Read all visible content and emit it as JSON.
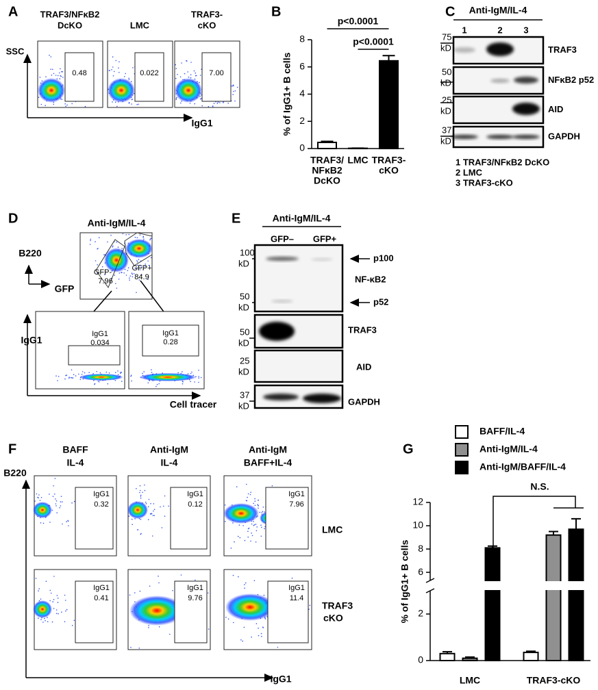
{
  "panel_labels": [
    "A",
    "B",
    "C",
    "D",
    "E",
    "F",
    "G"
  ],
  "flow_a": {
    "columns": [
      [
        "TRAF3/NFκB2",
        "DcKO"
      ],
      [
        "LMC"
      ],
      [
        "TRAF3-",
        "cKO"
      ]
    ],
    "y_axis": "SSC",
    "x_axis": "IgG1",
    "gates": [
      "0.48",
      "0.022",
      "7.00"
    ]
  },
  "chart_data": [
    {
      "type": "bar",
      "y_label": "% of IgG1+ B cells",
      "categories": [
        [
          "TRAF3/",
          "NFκB2",
          "DcKO"
        ],
        [
          "LMC"
        ],
        [
          "TRAF3-",
          "cKO"
        ]
      ],
      "values": [
        0.45,
        0.02,
        6.45
      ],
      "errors": [
        0.08,
        0.01,
        0.38
      ],
      "colors": [
        "#ffffff",
        "#ffffff",
        "#000000"
      ],
      "ylim": [
        0,
        8
      ],
      "yticks": [
        0,
        2,
        4,
        6,
        8
      ],
      "annotations": [
        "p<0.0001",
        "p<0.0001"
      ]
    },
    {
      "type": "bar",
      "y_label": "% of IgG1+ B cells",
      "categories": [
        "LMC",
        "TRAF3-cKO"
      ],
      "series": [
        {
          "name": "BAFF/IL-4",
          "color": "#ffffff",
          "values": [
            0.3,
            0.35
          ],
          "errors": [
            0.08,
            0.05
          ]
        },
        {
          "name": "Anti-IgM/IL-4",
          "color": "#909090",
          "values": [
            0.1,
            9.2
          ],
          "errors": [
            0.05,
            0.3
          ]
        },
        {
          "name": "Anti-IgM/BAFF/IL-4",
          "color": "#000000",
          "values": [
            8.1,
            9.7
          ],
          "errors": [
            0.15,
            0.9
          ]
        }
      ],
      "ylim": [
        0,
        12
      ],
      "axis_break": [
        3,
        5.3
      ],
      "yticks": [
        0,
        2,
        6,
        8,
        10,
        12
      ],
      "annotations": [
        "N.S."
      ]
    }
  ],
  "blot_c": {
    "title": "Anti-IgM/IL-4",
    "lanes": [
      "1",
      "2",
      "3"
    ],
    "markers": [
      [
        "75",
        "kD"
      ],
      [
        "50",
        "kD"
      ],
      [
        "25",
        "kD"
      ],
      [
        "37",
        "kD"
      ]
    ],
    "proteins": [
      "TRAF3",
      "NFκB2 p52",
      "AID",
      "GAPDH"
    ],
    "legend": [
      "1 TRAF3/NFκB2 DcKO",
      "2 LMC",
      "3 TRAF3-cKO"
    ]
  },
  "flow_d": {
    "title": "Anti-IgM/IL-4",
    "y_axis": "B220",
    "x_axis": "GFP",
    "gates": [
      [
        "GFP-",
        "7.96"
      ],
      [
        "GFP+",
        "84.9"
      ]
    ],
    "sub_y_axis": "IgG1",
    "sub_x_axis": "Cell tracer",
    "sub_gates": [
      [
        "IgG1",
        "0.034"
      ],
      [
        "IgG1",
        "0.28"
      ]
    ]
  },
  "blot_e": {
    "title": "Anti-IgM/IL-4",
    "lanes": [
      "GFP–",
      "GFP+"
    ],
    "markers": [
      [
        "100",
        "kD"
      ],
      [
        "50",
        "kD"
      ],
      [
        "50",
        "kD"
      ],
      [
        "25",
        "kD"
      ],
      [
        "37",
        "kD"
      ]
    ],
    "bands": [
      "p100",
      "p52"
    ],
    "proteins": [
      "NF-κB2",
      "TRAF3",
      "AID",
      "GAPDH"
    ]
  },
  "flow_f": {
    "columns": [
      [
        "BAFF",
        "IL-4"
      ],
      [
        "Anti-IgM",
        "IL-4"
      ],
      [
        "Anti-IgM",
        "BAFF+IL-4"
      ]
    ],
    "rows": [
      [
        "LMC"
      ],
      [
        "TRAF3",
        "cKO"
      ]
    ],
    "y_axis": "B220",
    "x_axis": "IgG1",
    "gates": [
      [
        "IgG1",
        "0.32"
      ],
      [
        "IgG1",
        "0.12"
      ],
      [
        "IgG1",
        "7.96"
      ],
      [
        "IgG1",
        "0.41"
      ],
      [
        "IgG1",
        "9.76"
      ],
      [
        "IgG1",
        "11.4"
      ]
    ]
  }
}
